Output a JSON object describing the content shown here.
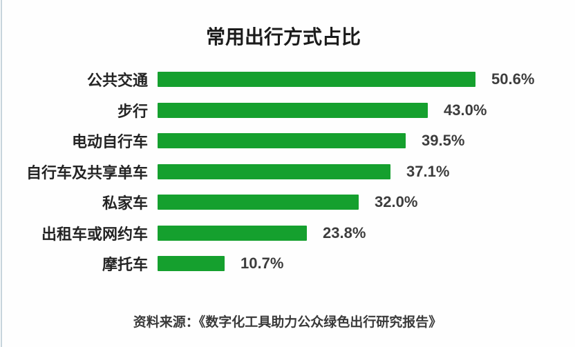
{
  "title": "常用出行方式占比",
  "source": "资料来源：《数字化工具助力公众绿色出行研究报告》",
  "colors": {
    "bar": "#15a02e",
    "title_text": "#1b1b1b",
    "category_text": "#242424",
    "value_text": "#3d3d3d",
    "source_text": "#3a3a3a",
    "left_edge_line": "#b4c6d0",
    "background": "#fefefe"
  },
  "chart_data": {
    "type": "bar",
    "orientation": "horizontal",
    "title": "常用出行方式占比",
    "categories": [
      "公共交通",
      "步行",
      "电动自行车",
      "自行车及共享单车",
      "私家车",
      "出租车或网约车",
      "摩托车"
    ],
    "values": [
      50.6,
      43.0,
      39.5,
      37.1,
      32.0,
      23.8,
      10.7
    ],
    "value_labels": [
      "50.6%",
      "43.0%",
      "39.5%",
      "37.1%",
      "32.0%",
      "23.8%",
      "10.7%"
    ],
    "unit": "%",
    "xlim": [
      0,
      55
    ],
    "grid": false,
    "legend": false,
    "axis_visible": false,
    "bar_color": "#15a02e",
    "value_label_position": "right-of-bar",
    "source": "资料来源：《数字化工具助力公众绿色出行研究报告》"
  }
}
